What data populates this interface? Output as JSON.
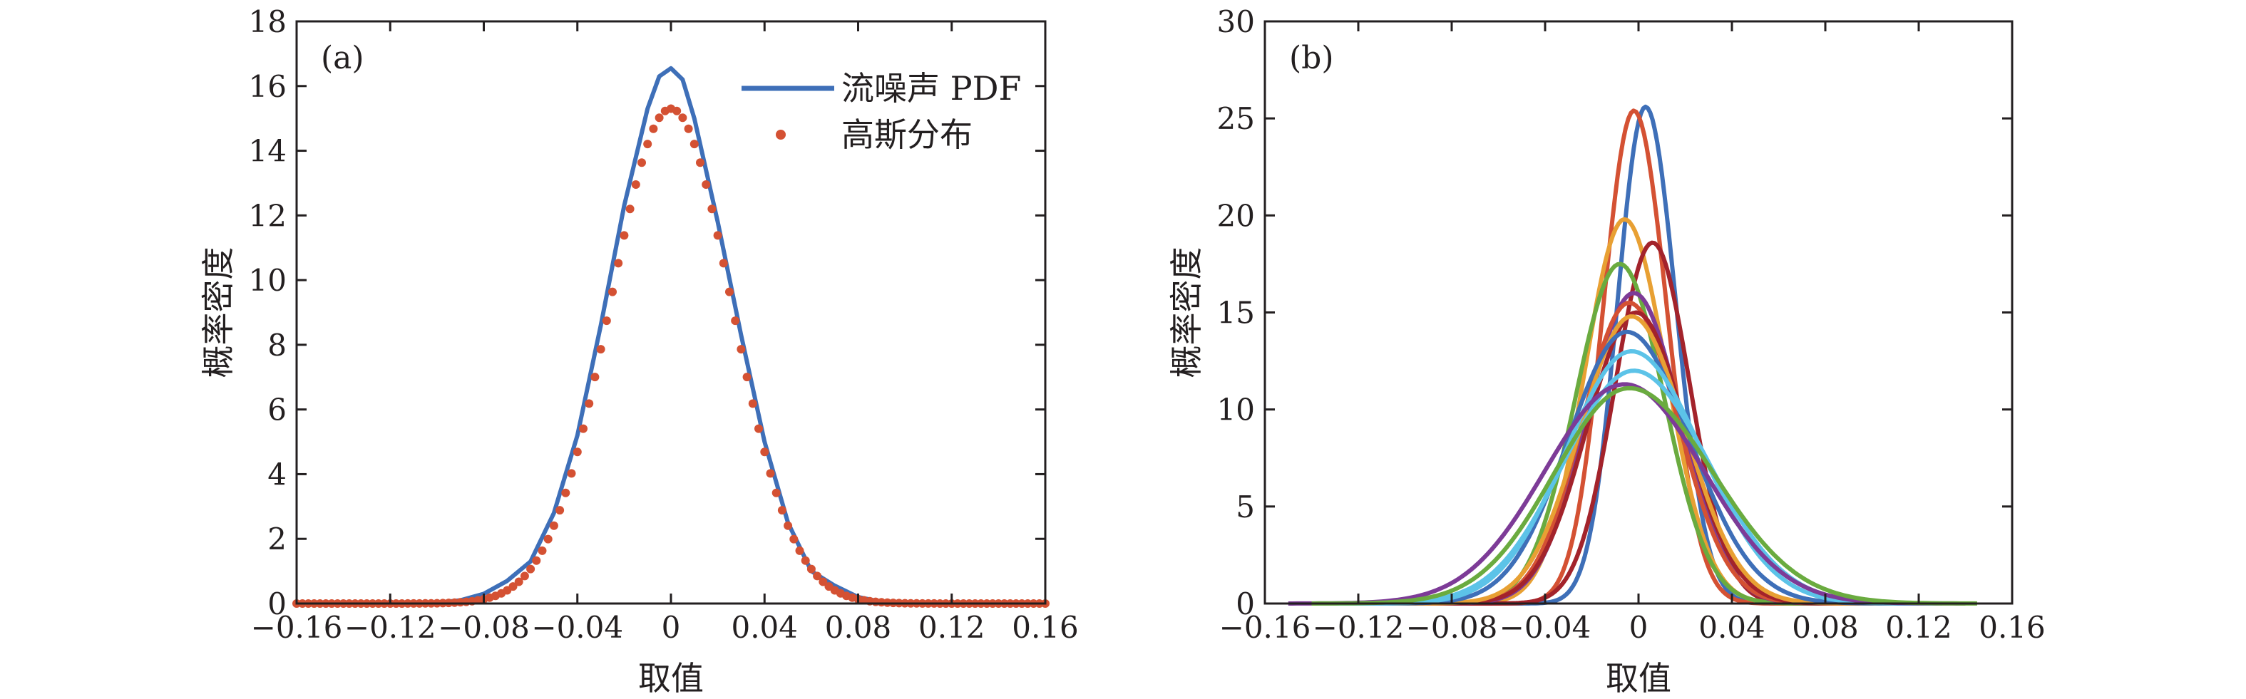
{
  "charts": [
    {
      "panel": "(a)",
      "type": "line",
      "xlabel": "取值",
      "ylabel": "概率密度",
      "xlim": [
        -0.16,
        0.16
      ],
      "ylim": [
        0,
        18
      ],
      "xticks": [
        -0.16,
        -0.12,
        -0.08,
        -0.04,
        0,
        0.04,
        0.08,
        0.12,
        0.16
      ],
      "xtick_labels": [
        "−0.16",
        "−0.12",
        "−0.08",
        "−0.04",
        "0",
        "0.04",
        "0.08",
        "0.12",
        "0.16"
      ],
      "yticks": [
        0,
        2,
        4,
        6,
        8,
        10,
        12,
        14,
        16,
        18
      ],
      "ytick_labels": [
        "0",
        "2",
        "4",
        "6",
        "8",
        "10",
        "12",
        "14",
        "16",
        "18"
      ],
      "legend_position": "top-right",
      "series": [
        {
          "name": "流噪声 PDF",
          "style": "line",
          "color": "#3e6fb8",
          "x": [
            -0.16,
            -0.1,
            -0.09,
            -0.08,
            -0.07,
            -0.06,
            -0.05,
            -0.04,
            -0.03,
            -0.02,
            -0.01,
            -0.005,
            0,
            0.005,
            0.01,
            0.02,
            0.03,
            0.04,
            0.05,
            0.06,
            0.07,
            0.08,
            0.09,
            0.1,
            0.16
          ],
          "y": [
            0,
            0.02,
            0.1,
            0.3,
            0.7,
            1.3,
            2.8,
            5.2,
            8.6,
            12.3,
            15.3,
            16.3,
            16.55,
            16.2,
            15.0,
            11.8,
            8.3,
            5.0,
            2.5,
            1.0,
            0.55,
            0.2,
            0.05,
            0.01,
            0
          ]
        },
        {
          "name": "高斯分布",
          "style": "markers",
          "color": "#d45133",
          "mu": 0.0,
          "sigma": 0.026,
          "peak": 15.3,
          "x_range": [
            -0.16,
            0.16
          ],
          "x_step": 0.0025
        }
      ]
    },
    {
      "panel": "(b)",
      "type": "line",
      "xlabel": "取值",
      "ylabel": "概率密度",
      "xlim": [
        -0.16,
        0.16
      ],
      "ylim": [
        0,
        30
      ],
      "xticks": [
        -0.16,
        -0.12,
        -0.08,
        -0.04,
        0,
        0.04,
        0.08,
        0.12,
        0.16
      ],
      "xtick_labels": [
        "−0.16",
        "−0.12",
        "−0.08",
        "−0.04",
        "0",
        "0.04",
        "0.08",
        "0.12",
        "0.16"
      ],
      "yticks": [
        0,
        5,
        10,
        15,
        20,
        25,
        30
      ],
      "ytick_labels": [
        "0",
        "5",
        "10",
        "15",
        "20",
        "25",
        "30"
      ],
      "series": [
        {
          "color": "#3e6fb8",
          "mu": 0.003,
          "sigmaL": 0.012,
          "sigmaR": 0.013,
          "peak": 25.6,
          "xmin": -0.09,
          "xmax": 0.07
        },
        {
          "color": "#d45133",
          "mu": -0.002,
          "sigmaL": 0.013,
          "sigmaR": 0.014,
          "peak": 25.4,
          "xmin": -0.1,
          "xmax": 0.08
        },
        {
          "color": "#e8a033",
          "mu": -0.006,
          "sigmaL": 0.017,
          "sigmaR": 0.018,
          "peak": 19.8,
          "xmin": -0.1,
          "xmax": 0.09
        },
        {
          "color": "#a3232b",
          "mu": 0.006,
          "sigmaL": 0.016,
          "sigmaR": 0.016,
          "peak": 18.6,
          "xmin": -0.1,
          "xmax": 0.09
        },
        {
          "color": "#6aab3f",
          "mu": -0.008,
          "sigmaL": 0.019,
          "sigmaR": 0.019,
          "peak": 17.5,
          "xmin": -0.11,
          "xmax": 0.1
        },
        {
          "color": "#7d3b97",
          "mu": -0.002,
          "sigmaL": 0.02,
          "sigmaR": 0.02,
          "peak": 16.0,
          "xmin": -0.11,
          "xmax": 0.1
        },
        {
          "color": "#d45133",
          "mu": -0.004,
          "sigmaL": 0.02,
          "sigmaR": 0.021,
          "peak": 15.5,
          "xmin": -0.11,
          "xmax": 0.1
        },
        {
          "color": "#a3232b",
          "mu": -0.001,
          "sigmaL": 0.021,
          "sigmaR": 0.021,
          "peak": 15.0,
          "xmin": -0.11,
          "xmax": 0.1
        },
        {
          "color": "#e8a033",
          "mu": -0.003,
          "sigmaL": 0.022,
          "sigmaR": 0.023,
          "peak": 14.8,
          "xmin": -0.12,
          "xmax": 0.11
        },
        {
          "color": "#3e6fb8",
          "mu": -0.005,
          "sigmaL": 0.025,
          "sigmaR": 0.027,
          "peak": 14.0,
          "xmin": -0.13,
          "xmax": 0.12
        },
        {
          "color": "#5cc3e8",
          "mu": -0.003,
          "sigmaL": 0.028,
          "sigmaR": 0.03,
          "peak": 13.0,
          "xmin": -0.14,
          "xmax": 0.13
        },
        {
          "color": "#5cc3e8",
          "mu": -0.002,
          "sigmaL": 0.03,
          "sigmaR": 0.032,
          "peak": 12.0,
          "xmin": -0.14,
          "xmax": 0.13
        },
        {
          "color": "#7d3b97",
          "mu": -0.006,
          "sigmaL": 0.034,
          "sigmaR": 0.034,
          "peak": 11.3,
          "xmin": -0.15,
          "xmax": 0.14
        },
        {
          "color": "#6aab3f",
          "mu": -0.004,
          "sigmaL": 0.032,
          "sigmaR": 0.036,
          "peak": 11.1,
          "xmin": -0.14,
          "xmax": 0.145
        }
      ]
    }
  ]
}
